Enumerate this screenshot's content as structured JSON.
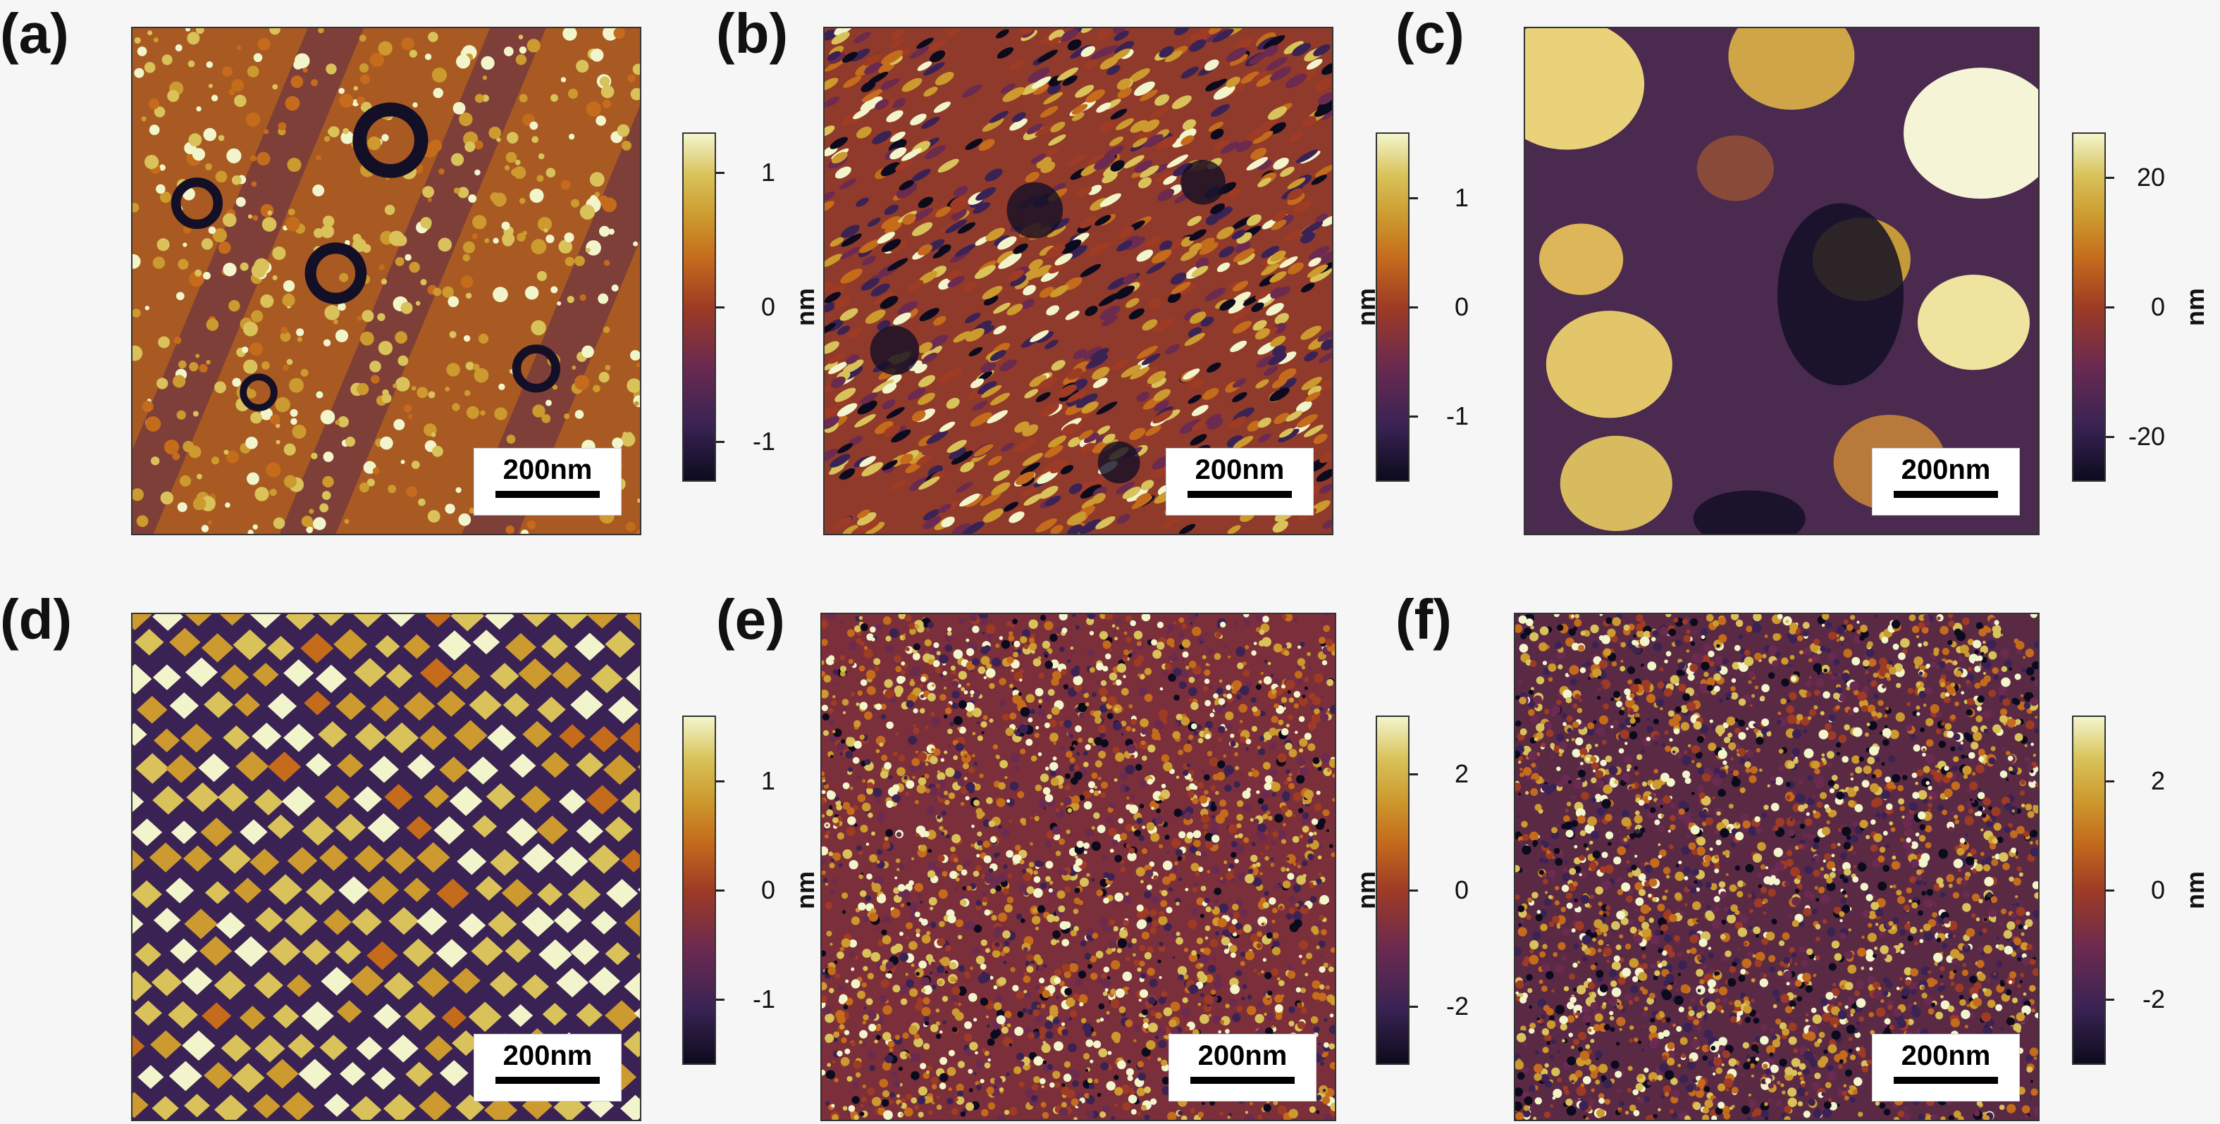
{
  "panels": [
    {
      "label": "(a)",
      "scalebar": "200nm",
      "unit": "nm",
      "ticks": [
        "1",
        "0",
        "-1"
      ],
      "ticks_values": [
        1,
        0,
        -1
      ],
      "range": [
        -1.3,
        1.3
      ],
      "texture": "circular-pits"
    },
    {
      "label": "(b)",
      "scalebar": "200nm",
      "unit": "nm",
      "ticks": [
        "1",
        "0",
        "-1"
      ],
      "ticks_values": [
        1,
        0,
        -1
      ],
      "range": [
        -1.6,
        1.6
      ],
      "texture": "stripes"
    },
    {
      "label": "(c)",
      "scalebar": "200nm",
      "unit": "nm",
      "ticks": [
        "20",
        "0",
        "-20"
      ],
      "ticks_values": [
        20,
        0,
        -20
      ],
      "range": [
        -27,
        27
      ],
      "texture": "large-grains"
    },
    {
      "label": "(d)",
      "scalebar": "200nm",
      "unit": "nm",
      "ticks": [
        "1",
        "0",
        "-1"
      ],
      "ticks_values": [
        1,
        0,
        -1
      ],
      "range": [
        -1.6,
        1.6
      ],
      "texture": "diamond-islands"
    },
    {
      "label": "(e)",
      "scalebar": "200nm",
      "unit": "nm",
      "ticks": [
        "2",
        "0",
        "-2"
      ],
      "ticks_values": [
        2,
        0,
        -2
      ],
      "range": [
        -3,
        3
      ],
      "texture": "fine-grains"
    },
    {
      "label": "(f)",
      "scalebar": "200nm",
      "unit": "nm",
      "ticks": [
        "2",
        "0",
        "-2"
      ],
      "ticks_values": [
        2,
        0,
        -2
      ],
      "range": [
        -3.2,
        3.2
      ],
      "texture": "fine-grains-dense"
    }
  ],
  "colors": {
    "dark": "#0c0b1e",
    "mid": "#9e3b25",
    "bright": "#f2f5cc",
    "base_orange": "#b5651d"
  }
}
